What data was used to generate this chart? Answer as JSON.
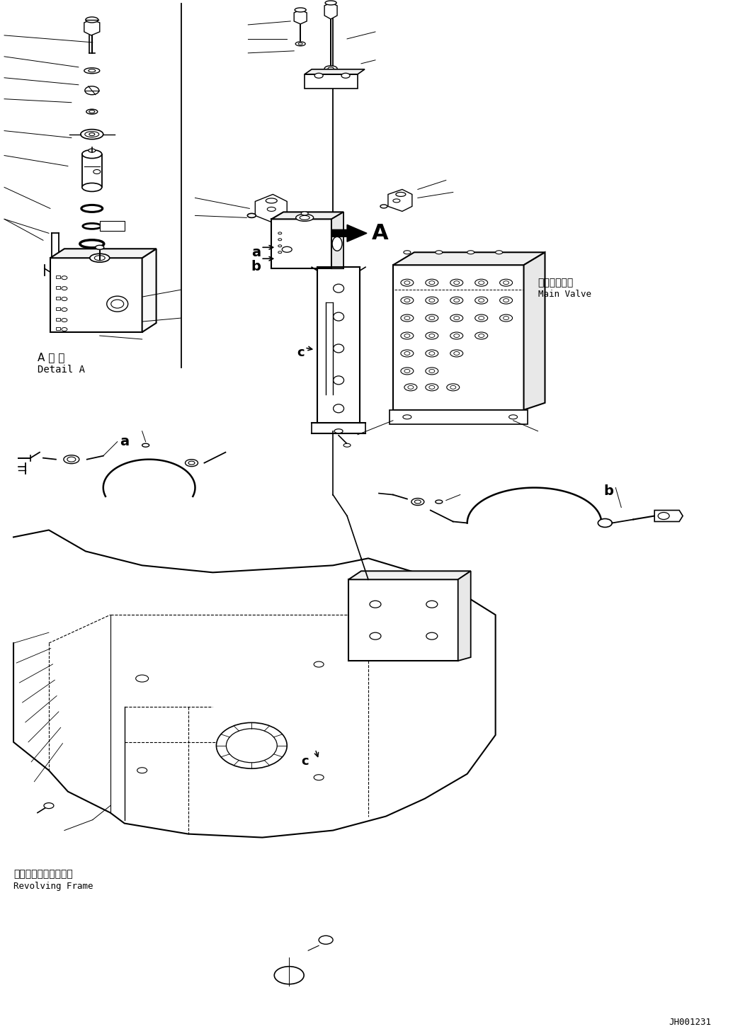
{
  "figure_width": 10.35,
  "figure_height": 14.53,
  "dpi": 100,
  "bg_color": "#ffffff",
  "line_color": "#000000",
  "labels": {
    "detail_a_jp": "A 詳 細",
    "detail_a_en": "Detail A",
    "main_valve_jp": "メインバルブ",
    "main_valve_en": "Main Valve",
    "revolving_frame_jp": "レボルビングフレーム",
    "revolving_frame_en": "Revolving Frame",
    "label_A": "A",
    "label_a1": "a",
    "label_b1": "b",
    "label_c1": "c",
    "label_a2": "a",
    "label_b2": "b",
    "label_c2": "c",
    "drawing_number": "JH001231"
  }
}
